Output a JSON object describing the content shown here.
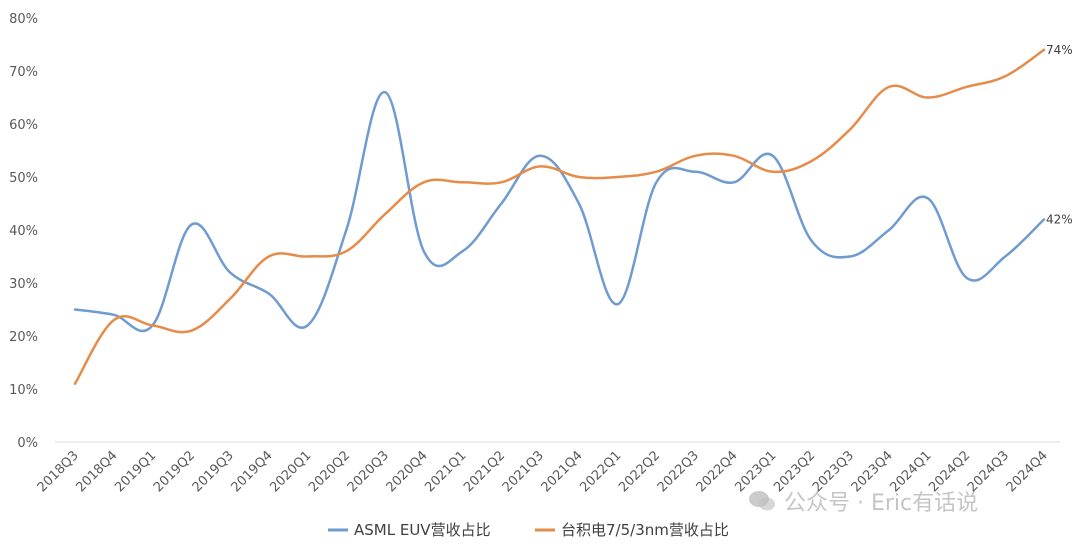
{
  "chart_data": {
    "type": "line",
    "categories": [
      "2018Q3",
      "2018Q4",
      "2019Q1",
      "2019Q2",
      "2019Q3",
      "2019Q4",
      "2020Q1",
      "2020Q2",
      "2020Q3",
      "2020Q4",
      "2021Q1",
      "2021Q2",
      "2021Q3",
      "2021Q4",
      "2022Q1",
      "2022Q2",
      "2022Q3",
      "2022Q4",
      "2023Q1",
      "2023Q2",
      "2023Q3",
      "2023Q4",
      "2024Q1",
      "2024Q2",
      "2024Q3",
      "2024Q4"
    ],
    "series": [
      {
        "name": "ASML EUV营收占比",
        "color": "#6f9bd1",
        "values": [
          25,
          24,
          22,
          41,
          32,
          28,
          22,
          40,
          66,
          36,
          36,
          45,
          54,
          45,
          26,
          49,
          51,
          49,
          54,
          38,
          35,
          40,
          46,
          31,
          35,
          42
        ]
      },
      {
        "name": "台积电7/5/3nm营收占比",
        "color": "#e58c4a",
        "values": [
          11,
          23,
          22,
          21,
          27,
          35,
          35,
          36,
          43,
          49,
          49,
          49,
          52,
          50,
          50,
          51,
          54,
          54,
          51,
          53,
          59,
          67,
          65,
          67,
          69,
          74
        ]
      }
    ],
    "ylim": [
      0,
      80
    ],
    "yticks": [
      "0%",
      "10%",
      "20%",
      "30%",
      "40%",
      "50%",
      "60%",
      "70%",
      "80%"
    ],
    "end_labels": [
      "42%",
      "74%"
    ],
    "legend": "bottom",
    "grid": false
  },
  "watermark": {
    "text": "公众号 · Eric有话说",
    "icon": "wechat-icon"
  }
}
